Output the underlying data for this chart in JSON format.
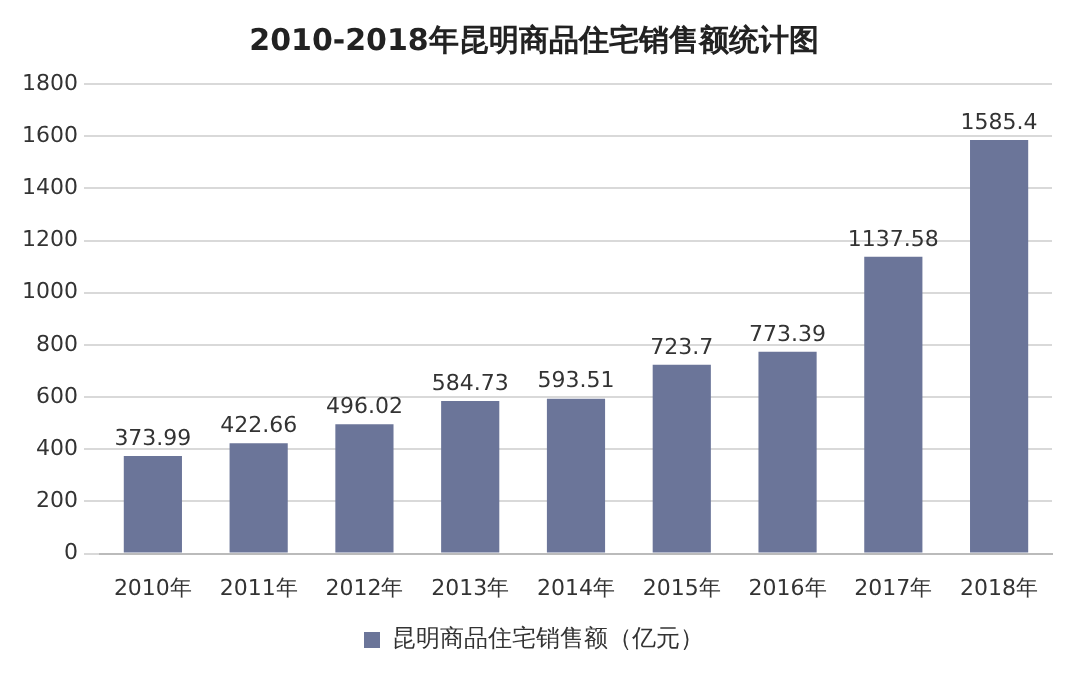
{
  "chart_data": {
    "type": "bar",
    "title": "2010-2018年昆明商品住宅销售额统计图",
    "categories": [
      "2010年",
      "2011年",
      "2012年",
      "2013年",
      "2014年",
      "2015年",
      "2016年",
      "2017年",
      "2018年"
    ],
    "series": [
      {
        "name": "昆明商品住宅销售额（亿元）",
        "color": "#6b7599",
        "values": [
          373.99,
          422.66,
          496.02,
          584.73,
          593.51,
          723.7,
          773.39,
          1137.58,
          1585.4
        ]
      }
    ],
    "ylim": [
      0,
      1800
    ],
    "yticks": [
      0,
      200,
      400,
      600,
      800,
      1000,
      1200,
      1400,
      1600,
      1800
    ],
    "grid": "y",
    "legend": "bottom",
    "data_labels": true
  }
}
